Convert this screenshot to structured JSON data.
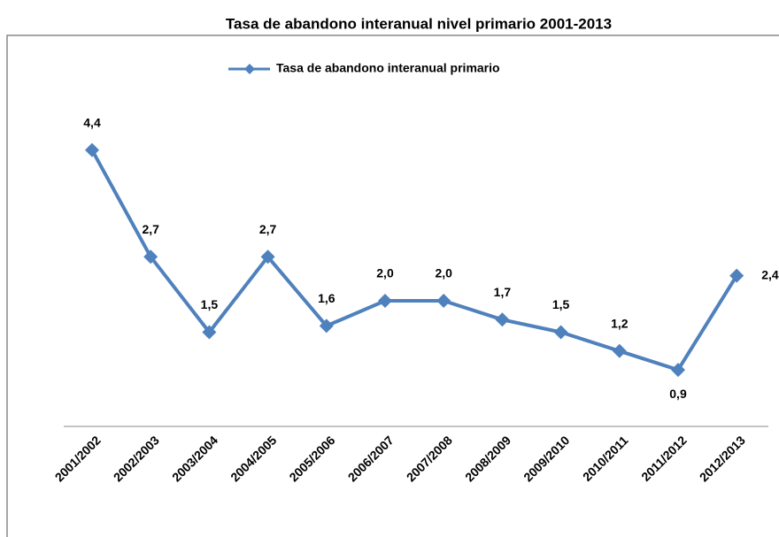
{
  "chart_data": {
    "type": "line",
    "title": "Tasa de abandono interanual nivel primario 2001-2013",
    "categories": [
      "2001/2002",
      "2002/2003",
      "2003/2004",
      "2004/2005",
      "2005/2006",
      "2006/2007",
      "2007/2008",
      "2008/2009",
      "2009/2010",
      "2010/2011",
      "2011/2012",
      "2012/2013"
    ],
    "series": [
      {
        "name": "Tasa de abandono interanual primario",
        "color": "#4f81bd",
        "values": [
          4.4,
          2.7,
          1.5,
          2.7,
          1.6,
          2.0,
          2.0,
          1.7,
          1.5,
          1.2,
          0.9,
          2.4
        ],
        "value_labels": [
          "4,4",
          "2,7",
          "1,5",
          "2,7",
          "1,6",
          "2,0",
          "2,0",
          "1,7",
          "1,5",
          "1,2",
          "0,9",
          "2,4"
        ]
      }
    ],
    "ylim": [
      0,
      5
    ],
    "legend": "top"
  }
}
